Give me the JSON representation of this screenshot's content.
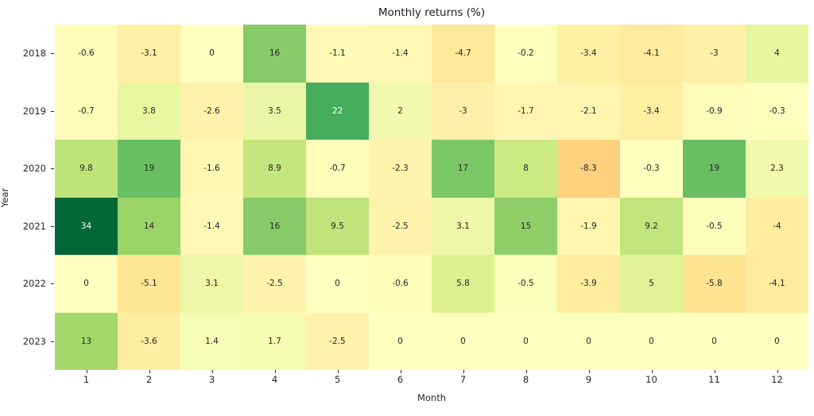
{
  "chart_data": {
    "type": "heatmap",
    "title": "Monthly returns (%)",
    "xlabel": "Month",
    "ylabel": "Year",
    "x_tick_labels": [
      "1",
      "2",
      "3",
      "4",
      "5",
      "6",
      "7",
      "8",
      "9",
      "10",
      "11",
      "12"
    ],
    "y_tick_labels": [
      "2018",
      "2019",
      "2020",
      "2021",
      "2022",
      "2023"
    ],
    "values": [
      [
        -0.6,
        -3.1,
        0,
        16,
        -1.1,
        -1.4,
        -4.7,
        -0.2,
        -3.4,
        -4.1,
        -3,
        4
      ],
      [
        -0.7,
        3.8,
        -2.6,
        3.5,
        22,
        2,
        -3,
        -1.7,
        -2.1,
        -3.4,
        -0.9,
        -0.3
      ],
      [
        9.8,
        19,
        -1.6,
        8.9,
        -0.7,
        -2.3,
        17,
        8,
        -8.3,
        -0.3,
        19,
        2.3
      ],
      [
        34,
        14,
        -1.4,
        16,
        9.5,
        -2.5,
        3.1,
        15,
        -1.9,
        9.2,
        -0.5,
        -4
      ],
      [
        0,
        -5.1,
        3.1,
        -2.5,
        0,
        -0.6,
        5.8,
        -0.5,
        -3.9,
        5,
        -5.8,
        -4.1
      ],
      [
        13,
        -3.6,
        1.4,
        1.7,
        -2.5,
        0,
        0,
        0,
        0,
        0,
        0,
        0
      ]
    ],
    "colormap": {
      "name": "RdYlGn",
      "anchors": [
        "#a50026",
        "#d73027",
        "#f46d43",
        "#fdae61",
        "#fee08b",
        "#ffffbf",
        "#d9ef8b",
        "#a6d96a",
        "#66bd63",
        "#1a9850",
        "#006837"
      ],
      "vmin": -32,
      "vmax": 32,
      "center": 0
    },
    "annotation_color_light_cells": "#262626",
    "annotation_color_dark_cells": "#ffffff",
    "grid": false,
    "legend": "none"
  }
}
